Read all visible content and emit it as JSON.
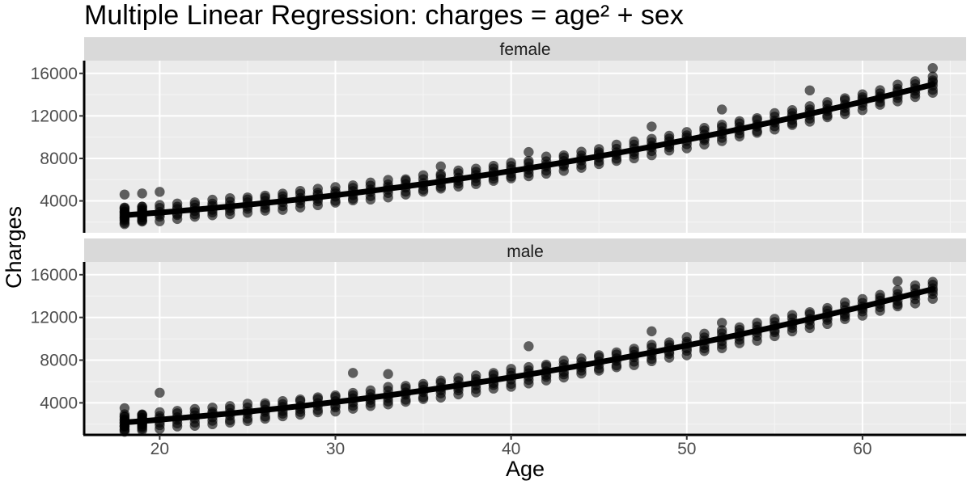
{
  "chart_data": {
    "type": "scatter",
    "title": "Multiple Linear Regression: charges = age² + sex",
    "xlabel": "Age",
    "ylabel": "Charges",
    "xlim": [
      15.7,
      65.9
    ],
    "ylim": [
      1000,
      17200
    ],
    "x_ticks": [
      20,
      30,
      40,
      50,
      60
    ],
    "y_ticks": [
      4000,
      8000,
      12000,
      16000
    ],
    "x_tick_labels": [
      "20",
      "30",
      "40",
      "50",
      "60"
    ],
    "y_tick_labels": [
      "4000",
      "8000",
      "12000",
      "16000"
    ],
    "grid": true,
    "point_color": "#000000",
    "point_alpha": 0.6,
    "line_color": "#000000",
    "panel_background": "#ebebeb",
    "strip_background": "#d9d9d9",
    "facets": [
      {
        "label": "female",
        "fit": {
          "intercept": 1600,
          "quadratic": 3.26
        },
        "spread": {
          "low": -750,
          "high": 750
        },
        "outliers": [
          [
            18,
            4600
          ],
          [
            19,
            4700
          ],
          [
            20,
            4850
          ],
          [
            36,
            7250
          ],
          [
            41,
            8600
          ],
          [
            48,
            11000
          ],
          [
            52,
            12600
          ],
          [
            57,
            14400
          ],
          [
            64,
            16500
          ]
        ]
      },
      {
        "label": "male",
        "fit": {
          "intercept": 1100,
          "quadratic": 3.31
        },
        "spread": {
          "low": -850,
          "high": 700
        },
        "outliers": [
          [
            18,
            3500
          ],
          [
            20,
            4950
          ],
          [
            31,
            6800
          ],
          [
            33,
            6700
          ],
          [
            41,
            9300
          ],
          [
            48,
            10700
          ],
          [
            52,
            11500
          ],
          [
            62,
            15400
          ]
        ]
      }
    ]
  }
}
